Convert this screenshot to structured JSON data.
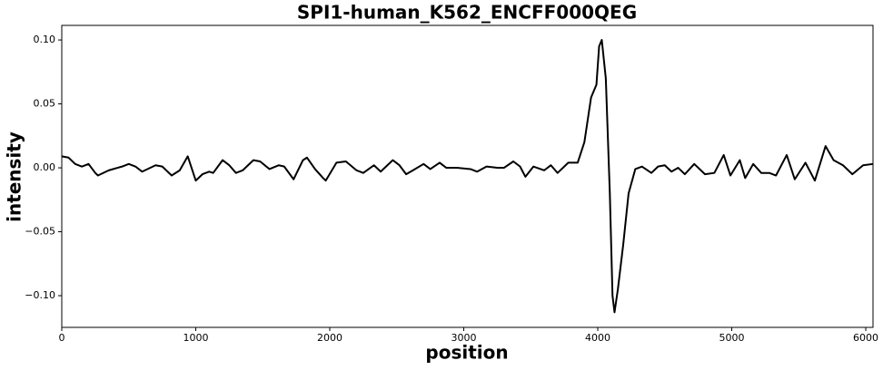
{
  "chart_data": {
    "type": "line",
    "title": "SPI1-human_K562_ENCFF000QEG",
    "x_label": "position",
    "y_label": "intensity",
    "x": [
      0,
      50,
      100,
      150,
      200,
      250,
      270,
      350,
      450,
      500,
      550,
      600,
      700,
      750,
      820,
      880,
      940,
      1000,
      1050,
      1100,
      1130,
      1200,
      1250,
      1300,
      1350,
      1430,
      1480,
      1550,
      1620,
      1660,
      1730,
      1800,
      1830,
      1890,
      1950,
      1970,
      2050,
      2120,
      2200,
      2250,
      2330,
      2380,
      2470,
      2520,
      2570,
      2620,
      2700,
      2750,
      2820,
      2870,
      2950,
      3050,
      3100,
      3170,
      3250,
      3300,
      3370,
      3420,
      3460,
      3520,
      3600,
      3650,
      3700,
      3780,
      3850,
      3900,
      3950,
      3990,
      4010,
      4030,
      4060,
      4090,
      4110,
      4125,
      4150,
      4190,
      4230,
      4280,
      4330,
      4400,
      4450,
      4500,
      4550,
      4600,
      4650,
      4720,
      4800,
      4870,
      4940,
      4990,
      5060,
      5100,
      5160,
      5220,
      5280,
      5330,
      5410,
      5470,
      5550,
      5620,
      5700,
      5760,
      5830,
      5900,
      5980,
      6054
    ],
    "series": [
      {
        "name": "intensity",
        "color": "#000000",
        "values": [
          0.009,
          0.008,
          0.003,
          0.001,
          0.003,
          -0.004,
          -0.006,
          -0.002,
          0.001,
          0.003,
          0.001,
          -0.003,
          0.002,
          0.001,
          -0.006,
          -0.002,
          0.009,
          -0.01,
          -0.005,
          -0.003,
          -0.004,
          0.006,
          0.002,
          -0.004,
          -0.002,
          0.006,
          0.005,
          -0.001,
          0.002,
          0.001,
          -0.009,
          0.006,
          0.008,
          -0.001,
          -0.008,
          -0.01,
          0.004,
          0.005,
          -0.002,
          -0.004,
          0.002,
          -0.003,
          0.006,
          0.002,
          -0.005,
          -0.002,
          0.003,
          -0.001,
          0.004,
          0.0,
          0.0,
          -0.001,
          -0.003,
          0.001,
          0.0,
          0.0,
          0.005,
          0.001,
          -0.007,
          0.001,
          -0.002,
          0.002,
          -0.004,
          0.004,
          0.004,
          0.02,
          0.055,
          0.065,
          0.095,
          0.1,
          0.07,
          -0.02,
          -0.1,
          -0.113,
          -0.095,
          -0.06,
          -0.02,
          -0.001,
          0.001,
          -0.004,
          0.001,
          0.002,
          -0.003,
          0.0,
          -0.005,
          0.003,
          -0.005,
          -0.004,
          0.01,
          -0.006,
          0.006,
          -0.008,
          0.003,
          -0.004,
          -0.004,
          -0.006,
          0.01,
          -0.009,
          0.004,
          -0.01,
          0.017,
          0.006,
          0.002,
          -0.005,
          0.002,
          0.003
        ]
      }
    ],
    "xlim": [
      0,
      6054
    ],
    "ylim": [
      -0.1248,
      0.1114
    ],
    "xticks": [
      0,
      1000,
      2000,
      3000,
      4000,
      5000,
      6000
    ],
    "yticks": [
      {
        "value": 0.1,
        "label": "0.10"
      },
      {
        "value": 0.05,
        "label": "0.05"
      },
      {
        "value": 0,
        "label": "0.00"
      },
      {
        "value": -0.05,
        "label": "−0.05"
      },
      {
        "value": -0.1,
        "label": "−0.10"
      }
    ],
    "grid": false
  }
}
